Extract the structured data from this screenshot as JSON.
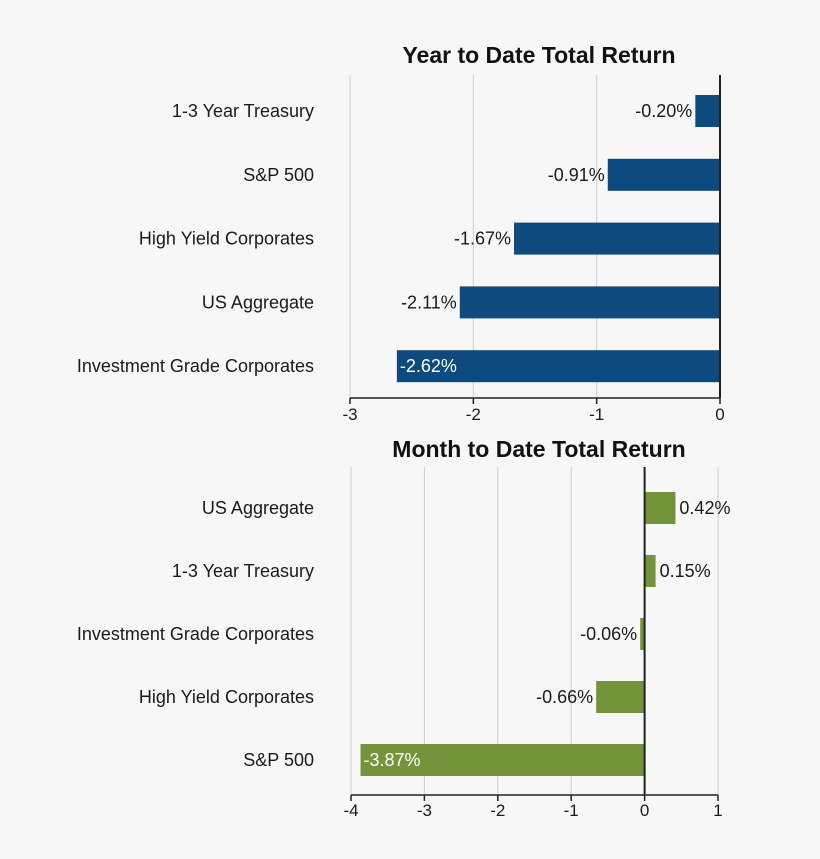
{
  "chart_data": [
    {
      "type": "bar",
      "orientation": "horizontal",
      "title": "Year to Date Total Return",
      "categories": [
        "1-3 Year Treasury",
        "S&P 500",
        "High Yield Corporates",
        "US Aggregate",
        "Investment Grade Corporates"
      ],
      "values": [
        -0.2,
        -0.91,
        -1.67,
        -2.11,
        -2.62
      ],
      "labels": [
        "-0.20%",
        "-0.91%",
        "-1.67%",
        "-2.11%",
        "-2.62%"
      ],
      "xlim": [
        -3,
        0
      ],
      "ticks": [
        -3,
        -2,
        -1,
        0
      ],
      "tick_labels": [
        "-3",
        "-2",
        "-1",
        "0"
      ],
      "color": "#0e4a7e",
      "grid": true
    },
    {
      "type": "bar",
      "orientation": "horizontal",
      "title": "Month to Date Total Return",
      "categories": [
        "US Aggregate",
        "1-3 Year Treasury",
        "Investment Grade Corporates",
        "High Yield Corporates",
        "S&P 500"
      ],
      "values": [
        0.42,
        0.15,
        -0.06,
        -0.66,
        -3.87
      ],
      "labels": [
        "0.42%",
        "0.15%",
        "-0.06%",
        "-0.66%",
        "-3.87%"
      ],
      "xlim": [
        -4,
        1
      ],
      "ticks": [
        -4,
        -3,
        -2,
        -1,
        0,
        1
      ],
      "tick_labels": [
        "-4",
        "-3",
        "-2",
        "-1",
        "0",
        "1"
      ],
      "color": "#74943c",
      "grid": true
    }
  ]
}
